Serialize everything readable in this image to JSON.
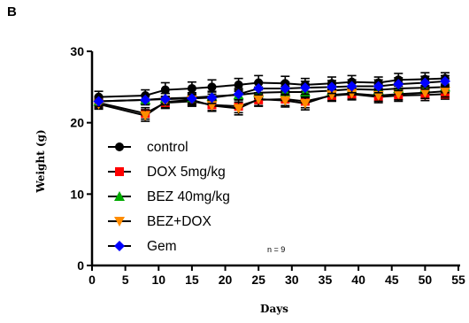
{
  "panel_label": "B",
  "chart_data": {
    "type": "line",
    "title": "",
    "xlabel": "Days",
    "ylabel": "Weight (g)",
    "xlim": [
      0,
      55
    ],
    "ylim": [
      0,
      30
    ],
    "xticks": [
      0,
      5,
      10,
      15,
      20,
      25,
      30,
      35,
      40,
      45,
      50,
      55
    ],
    "yticks": [
      0,
      10,
      20,
      30
    ],
    "x": [
      1,
      8,
      11,
      15,
      18,
      22,
      25,
      29,
      32,
      36,
      39,
      43,
      46,
      50,
      53
    ],
    "series": [
      {
        "name": "control",
        "marker": "circle",
        "color": "#000000",
        "values": [
          23.6,
          23.8,
          24.6,
          24.8,
          25.0,
          25.3,
          25.6,
          25.5,
          25.3,
          25.5,
          25.7,
          25.6,
          26.0,
          26.1,
          26.2
        ],
        "errors": [
          0.8,
          0.8,
          1.0,
          0.9,
          1.0,
          0.9,
          1.0,
          1.0,
          0.9,
          0.9,
          0.9,
          0.8,
          0.9,
          0.9,
          0.8
        ]
      },
      {
        "name": "DOX 5mg/kg",
        "marker": "square",
        "color": "#ff0000",
        "values": [
          22.8,
          21.3,
          22.8,
          23.0,
          22.5,
          22.3,
          23.2,
          23.3,
          23.0,
          23.8,
          24.0,
          23.6,
          23.8,
          23.9,
          24.0
        ],
        "errors": [
          0.7,
          0.8,
          0.8,
          0.7,
          0.8,
          0.9,
          0.9,
          0.9,
          0.9,
          0.8,
          0.8,
          0.8,
          0.8,
          0.8,
          0.7
        ]
      },
      {
        "name": "BEZ 40mg/kg",
        "marker": "triangle-up",
        "color": "#00aa00",
        "values": [
          23.0,
          23.2,
          23.4,
          23.5,
          23.7,
          23.9,
          24.2,
          24.3,
          24.3,
          24.5,
          24.7,
          24.6,
          24.8,
          24.9,
          25.0
        ],
        "errors": [
          0.6,
          0.6,
          0.7,
          0.7,
          0.7,
          0.7,
          0.8,
          0.8,
          0.8,
          0.8,
          0.8,
          0.8,
          0.8,
          0.8,
          0.8
        ]
      },
      {
        "name": "BEZ+DOX",
        "marker": "triangle-down",
        "color": "#ff8c00",
        "values": [
          22.6,
          21.0,
          22.9,
          23.2,
          22.4,
          22.0,
          23.3,
          23.1,
          22.7,
          23.9,
          24.1,
          23.8,
          24.0,
          24.2,
          24.4
        ],
        "errors": [
          0.7,
          0.8,
          0.8,
          0.8,
          0.8,
          0.9,
          0.9,
          0.9,
          0.9,
          0.8,
          0.8,
          0.8,
          0.8,
          0.8,
          0.8
        ]
      },
      {
        "name": "Gem",
        "marker": "diamond",
        "color": "#0000ff",
        "values": [
          23.0,
          23.2,
          23.3,
          23.4,
          23.5,
          24.0,
          24.8,
          24.8,
          24.9,
          25.0,
          25.1,
          25.1,
          25.4,
          25.6,
          25.8
        ],
        "errors": [
          0.7,
          0.7,
          0.8,
          0.8,
          0.8,
          0.8,
          0.9,
          0.9,
          0.9,
          0.9,
          0.9,
          0.9,
          0.9,
          0.9,
          0.8
        ]
      }
    ],
    "legend_position": "lower-left, inside plot",
    "annotation": "n = 9"
  }
}
